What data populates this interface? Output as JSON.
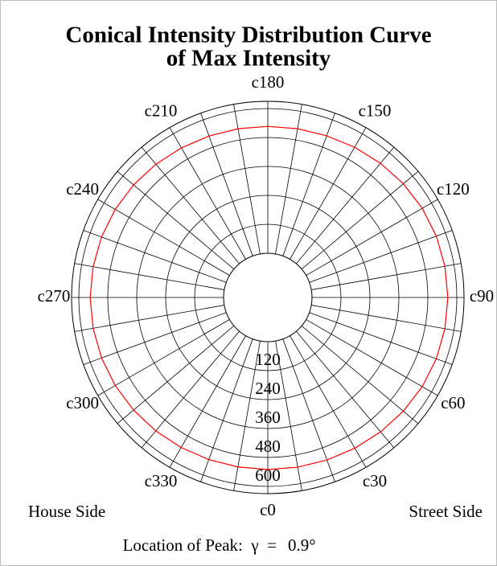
{
  "chart_data": {
    "type": "polar",
    "title": [
      "Conical Intensity Distribution Curve",
      "of  Max Intensity"
    ],
    "x": [
      0,
      10,
      20,
      30,
      40,
      50,
      60,
      70,
      80,
      90,
      100,
      110,
      120,
      130,
      140,
      150,
      160,
      170,
      180,
      190,
      200,
      210,
      220,
      230,
      240,
      250,
      260,
      270,
      280,
      290,
      300,
      310,
      320,
      330,
      340,
      350
    ],
    "series": [
      {
        "color": "#ff0000",
        "values": [
          530,
          531,
          534,
          538,
          544,
          550,
          556,
          560,
          562,
          563,
          562,
          560,
          556,
          550,
          543,
          536,
          530,
          527,
          526,
          527,
          529,
          533,
          538,
          543,
          547,
          550,
          552,
          553,
          552,
          550,
          547,
          543,
          539,
          535,
          532,
          530
        ]
      }
    ],
    "ylim": [
      0,
      630
    ],
    "yticks": [
      120,
      240,
      360,
      480,
      600
    ],
    "xticks": [
      {
        "value": 0,
        "label": "c0"
      },
      {
        "value": 30,
        "label": "c30"
      },
      {
        "value": 60,
        "label": "c60"
      },
      {
        "value": 90,
        "label": "c90"
      },
      {
        "value": 120,
        "label": "c120"
      },
      {
        "value": 150,
        "label": "c150"
      },
      {
        "value": 180,
        "label": "c180"
      },
      {
        "value": 210,
        "label": "c210"
      },
      {
        "value": 240,
        "label": "c240"
      },
      {
        "value": 270,
        "label": "c270"
      },
      {
        "value": 300,
        "label": "c300"
      },
      {
        "value": 330,
        "label": "c330"
      }
    ],
    "xgrid": [
      0,
      10,
      20,
      30,
      40,
      50,
      60,
      70,
      80,
      90,
      100,
      110,
      120,
      130,
      140,
      150,
      160,
      170,
      180,
      190,
      200,
      210,
      220,
      230,
      240,
      250,
      260,
      270,
      280,
      290,
      300,
      310,
      320,
      330,
      340,
      350
    ],
    "left_label": "House Side",
    "right_label": "Street Side",
    "peak_label": "Location of Peak:  γ  =",
    "peak_value": "0.9°",
    "peak_color": "#ff0000"
  }
}
